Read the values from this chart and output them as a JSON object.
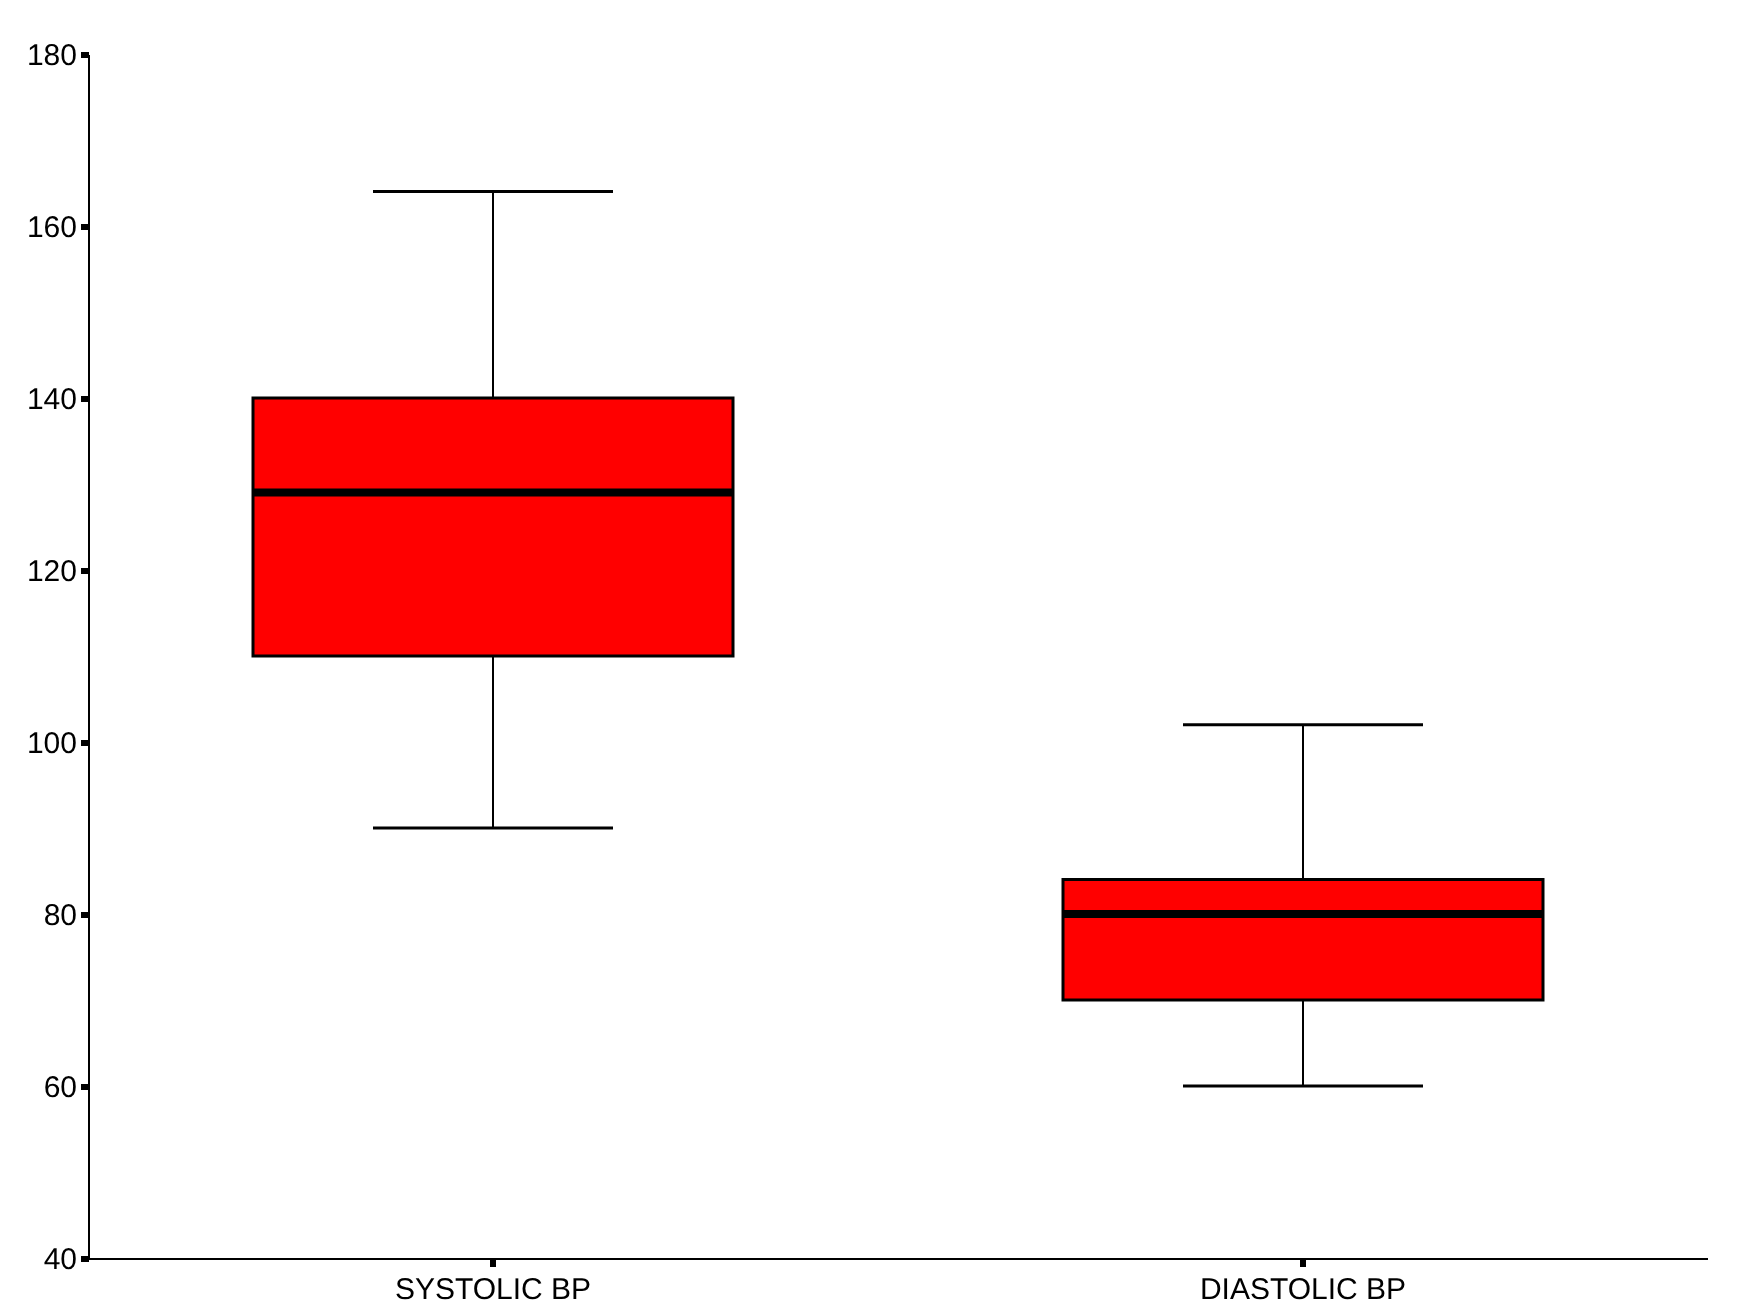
{
  "chart_data": {
    "type": "box",
    "categories": [
      "SYSTOLIC BP",
      "DIASTOLIC BP"
    ],
    "boxes": [
      {
        "low": 90,
        "q1": 110,
        "median": 129,
        "q3": 140,
        "high": 164
      },
      {
        "low": 60,
        "q1": 70,
        "median": 80,
        "q3": 84,
        "high": 102
      }
    ],
    "color": "#ff0000",
    "ylim": [
      40,
      180
    ],
    "yticks": [
      40,
      60,
      80,
      100,
      120,
      140,
      160,
      180
    ],
    "grid": false
  }
}
